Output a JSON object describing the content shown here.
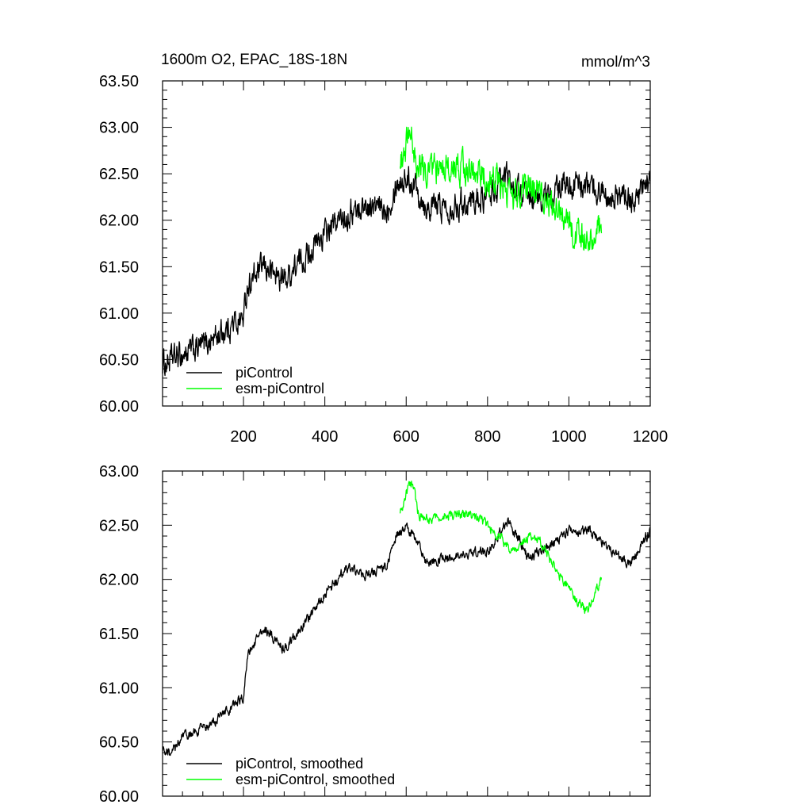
{
  "chart_data": [
    {
      "type": "line",
      "title": "1600m O2, EPAC_18S-18N",
      "units": "mmol/m^3",
      "xlabel": "",
      "ylabel": "",
      "xlim": [
        1,
        1200
      ],
      "ylim": [
        60.0,
        63.5
      ],
      "xticks": [
        200,
        400,
        600,
        800,
        1000,
        1200
      ],
      "xtick_labels": [
        "200",
        "400",
        "600",
        "800",
        "1000",
        "1200"
      ],
      "yticks": [
        60.0,
        60.5,
        61.0,
        61.5,
        62.0,
        62.5,
        63.0,
        63.5
      ],
      "ytick_labels": [
        "60.00",
        "60.50",
        "61.00",
        "61.50",
        "62.00",
        "62.50",
        "63.00",
        "63.50"
      ],
      "grid": false,
      "legend_position": "bottom-left",
      "series": [
        {
          "name": "piControl",
          "color": "#000000",
          "x": [
            1,
            50,
            100,
            150,
            180,
            200,
            210,
            250,
            300,
            350,
            400,
            450,
            500,
            550,
            575,
            600,
            620,
            650,
            700,
            750,
            800,
            850,
            900,
            950,
            1000,
            1050,
            1100,
            1150,
            1200
          ],
          "y": [
            60.45,
            60.55,
            60.65,
            60.8,
            60.9,
            60.95,
            61.3,
            61.5,
            61.35,
            61.6,
            61.85,
            62.05,
            62.15,
            62.1,
            62.4,
            62.45,
            62.4,
            62.15,
            62.15,
            62.2,
            62.25,
            62.45,
            62.2,
            62.25,
            62.4,
            62.35,
            62.3,
            62.2,
            62.4
          ],
          "noise_sd": 0.13
        },
        {
          "name": "esm-piControl",
          "color": "#00ff00",
          "x": [
            585,
            600,
            615,
            630,
            660,
            700,
            750,
            800,
            830,
            860,
            900,
            930,
            960,
            1000,
            1020,
            1045,
            1060,
            1080
          ],
          "y": [
            62.6,
            62.8,
            62.85,
            62.6,
            62.55,
            62.55,
            62.55,
            62.45,
            62.4,
            62.2,
            62.35,
            62.35,
            62.15,
            61.95,
            61.85,
            61.75,
            61.85,
            61.95
          ],
          "noise_sd": 0.15
        }
      ]
    },
    {
      "type": "line",
      "title": "",
      "xlabel": "",
      "ylabel": "",
      "xlim": [
        1,
        1200
      ],
      "ylim": [
        60.0,
        63.0
      ],
      "xticks": [
        200,
        400,
        600,
        800,
        1000,
        1200
      ],
      "xtick_labels": [],
      "yticks": [
        60.0,
        60.5,
        61.0,
        61.5,
        62.0,
        62.5,
        63.0
      ],
      "ytick_labels": [
        "60.00",
        "60.50",
        "61.00",
        "61.50",
        "62.00",
        "62.50",
        "63.00"
      ],
      "grid": false,
      "legend_position": "bottom-left",
      "series": [
        {
          "name": "piControl, smoothed",
          "color": "#000000",
          "x": [
            1,
            20,
            50,
            100,
            150,
            180,
            200,
            210,
            250,
            300,
            350,
            400,
            450,
            500,
            550,
            575,
            600,
            620,
            650,
            700,
            750,
            800,
            850,
            900,
            950,
            1000,
            1050,
            1100,
            1150,
            1200
          ],
          "y": [
            60.45,
            60.4,
            60.55,
            60.62,
            60.75,
            60.85,
            60.92,
            61.3,
            61.55,
            61.35,
            61.6,
            61.85,
            62.1,
            62.05,
            62.1,
            62.4,
            62.48,
            62.4,
            62.15,
            62.2,
            62.25,
            62.25,
            62.55,
            62.2,
            62.3,
            62.45,
            62.45,
            62.28,
            62.15,
            62.45
          ],
          "noise_sd": 0.04
        },
        {
          "name": "esm-piControl, smoothed",
          "color": "#00ff00",
          "x": [
            585,
            600,
            615,
            630,
            660,
            700,
            750,
            800,
            830,
            860,
            900,
            930,
            960,
            1000,
            1020,
            1045,
            1060,
            1080
          ],
          "y": [
            62.6,
            62.8,
            62.9,
            62.6,
            62.55,
            62.6,
            62.6,
            62.5,
            62.4,
            62.25,
            62.4,
            62.35,
            62.15,
            61.9,
            61.8,
            61.7,
            61.85,
            62.0
          ],
          "noise_sd": 0.04
        }
      ]
    }
  ]
}
